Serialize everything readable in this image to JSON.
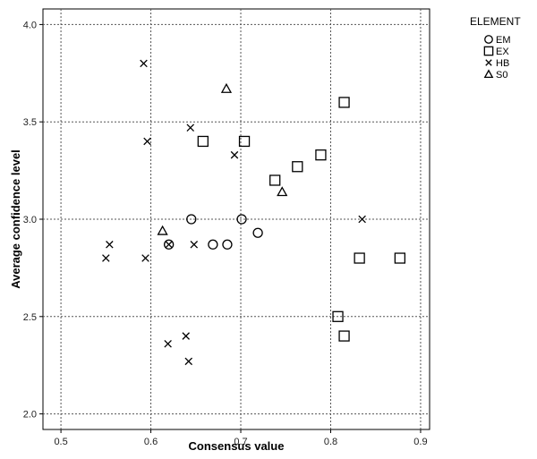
{
  "chart_data": {
    "type": "scatter",
    "xlabel": "Consensus value",
    "ylabel": "Average confidence level",
    "xlim": [
      0.48,
      0.91
    ],
    "ylim": [
      1.92,
      4.08
    ],
    "x_ticks": [
      "0.5",
      "0.6",
      "0.7",
      "0.8",
      "0.9"
    ],
    "y_ticks": [
      "2.0",
      "2.5",
      "3.0",
      "3.5",
      "4.0"
    ],
    "grid": true,
    "legend": {
      "title": "ELEMENT",
      "placement": "right",
      "items": [
        {
          "label": "EM",
          "marker": "circle"
        },
        {
          "label": "EX",
          "marker": "square"
        },
        {
          "label": "HB",
          "marker": "x"
        },
        {
          "label": "S0",
          "marker": "triangle"
        }
      ]
    },
    "series": [
      {
        "name": "EM",
        "marker": "circle",
        "points": [
          [
            0.62,
            2.87
          ],
          [
            0.645,
            3.0
          ],
          [
            0.669,
            2.87
          ],
          [
            0.685,
            2.87
          ],
          [
            0.701,
            3.0
          ],
          [
            0.719,
            2.93
          ]
        ]
      },
      {
        "name": "EX",
        "marker": "square",
        "points": [
          [
            0.658,
            3.4
          ],
          [
            0.704,
            3.4
          ],
          [
            0.738,
            3.2
          ],
          [
            0.763,
            3.27
          ],
          [
            0.789,
            3.33
          ],
          [
            0.808,
            2.5
          ],
          [
            0.815,
            3.6
          ],
          [
            0.815,
            2.4
          ],
          [
            0.832,
            2.8
          ],
          [
            0.877,
            2.8
          ]
        ]
      },
      {
        "name": "HB",
        "marker": "x",
        "points": [
          [
            0.55,
            2.8
          ],
          [
            0.554,
            2.87
          ],
          [
            0.592,
            3.8
          ],
          [
            0.594,
            2.8
          ],
          [
            0.596,
            3.4
          ],
          [
            0.619,
            2.36
          ],
          [
            0.62,
            2.87
          ],
          [
            0.639,
            2.4
          ],
          [
            0.642,
            2.27
          ],
          [
            0.644,
            3.47
          ],
          [
            0.648,
            2.87
          ],
          [
            0.693,
            3.33
          ],
          [
            0.835,
            3.0
          ]
        ]
      },
      {
        "name": "S0",
        "marker": "triangle",
        "points": [
          [
            0.613,
            2.94
          ],
          [
            0.684,
            3.67
          ],
          [
            0.746,
            3.14
          ]
        ]
      }
    ]
  }
}
